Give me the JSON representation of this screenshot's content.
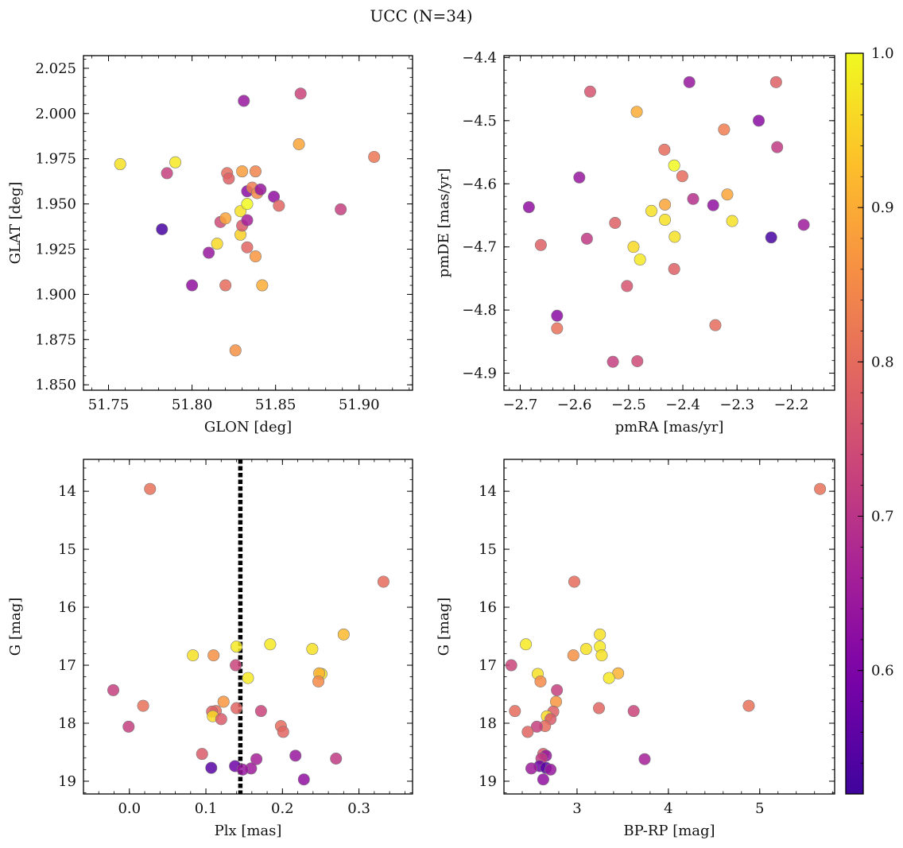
{
  "figure": {
    "title": "UCC (N=34)"
  },
  "colorbar": {
    "colormap": "plasma",
    "vmin": 0.52,
    "vmax": 1.0,
    "ticks": [
      0.6,
      0.7,
      0.8,
      0.9,
      1.0
    ]
  },
  "chart_data": [
    {
      "type": "scatter",
      "xlabel": "GLON [deg]",
      "ylabel": "GLAT [deg]",
      "xlim": [
        51.735,
        51.932
      ],
      "ylim": [
        1.847,
        2.032
      ],
      "xticks": [
        51.75,
        51.8,
        51.85,
        51.9
      ],
      "xtick_decimals": 2,
      "yticks": [
        1.85,
        1.875,
        1.9,
        1.925,
        1.95,
        1.975,
        2.0,
        2.025
      ],
      "ytick_decimals": 3,
      "invert_y": false,
      "points": [
        {
          "x": 51.757,
          "y": 1.972,
          "c": 0.97
        },
        {
          "x": 51.785,
          "y": 1.967,
          "c": 0.72
        },
        {
          "x": 51.79,
          "y": 1.973,
          "c": 0.98
        },
        {
          "x": 51.782,
          "y": 1.936,
          "c": 0.53
        },
        {
          "x": 51.8,
          "y": 1.905,
          "c": 0.63
        },
        {
          "x": 51.81,
          "y": 1.923,
          "c": 0.64
        },
        {
          "x": 51.815,
          "y": 1.928,
          "c": 0.96
        },
        {
          "x": 51.817,
          "y": 1.94,
          "c": 0.74
        },
        {
          "x": 51.82,
          "y": 1.942,
          "c": 0.89
        },
        {
          "x": 51.821,
          "y": 1.967,
          "c": 0.8
        },
        {
          "x": 51.822,
          "y": 1.964,
          "c": 0.78
        },
        {
          "x": 51.82,
          "y": 1.905,
          "c": 0.8
        },
        {
          "x": 51.826,
          "y": 1.869,
          "c": 0.86
        },
        {
          "x": 51.829,
          "y": 1.946,
          "c": 0.97
        },
        {
          "x": 51.829,
          "y": 1.933,
          "c": 0.95
        },
        {
          "x": 51.83,
          "y": 1.968,
          "c": 0.88
        },
        {
          "x": 51.83,
          "y": 1.938,
          "c": 0.77
        },
        {
          "x": 51.833,
          "y": 1.95,
          "c": 1.0
        },
        {
          "x": 51.833,
          "y": 1.941,
          "c": 0.66
        },
        {
          "x": 51.833,
          "y": 1.926,
          "c": 0.79
        },
        {
          "x": 51.831,
          "y": 2.007,
          "c": 0.64
        },
        {
          "x": 51.833,
          "y": 1.957,
          "c": 0.62
        },
        {
          "x": 51.836,
          "y": 1.959,
          "c": 0.83
        },
        {
          "x": 51.838,
          "y": 1.968,
          "c": 0.84
        },
        {
          "x": 51.839,
          "y": 1.956,
          "c": 0.85
        },
        {
          "x": 51.841,
          "y": 1.958,
          "c": 0.64
        },
        {
          "x": 51.838,
          "y": 1.921,
          "c": 0.87
        },
        {
          "x": 51.842,
          "y": 1.905,
          "c": 0.9
        },
        {
          "x": 51.849,
          "y": 1.954,
          "c": 0.63
        },
        {
          "x": 51.852,
          "y": 1.949,
          "c": 0.79
        },
        {
          "x": 51.864,
          "y": 1.983,
          "c": 0.89
        },
        {
          "x": 51.865,
          "y": 2.011,
          "c": 0.73
        },
        {
          "x": 51.889,
          "y": 1.947,
          "c": 0.72
        },
        {
          "x": 51.909,
          "y": 1.976,
          "c": 0.82
        }
      ]
    },
    {
      "type": "scatter",
      "xlabel": "pmRA [mas/yr]",
      "ylabel": "pmDE [mas/yr]",
      "xlim": [
        -2.73,
        -2.12
      ],
      "ylim": [
        -4.927,
        -4.397
      ],
      "xticks": [
        -2.7,
        -2.6,
        -2.5,
        -2.4,
        -2.3,
        -2.2
      ],
      "xtick_decimals": 1,
      "yticks": [
        -4.9,
        -4.8,
        -4.7,
        -4.6,
        -4.5,
        -4.4
      ],
      "ytick_decimals": 1,
      "invert_y": false,
      "points": [
        {
          "x": -2.684,
          "y": -4.637,
          "c": 0.63
        },
        {
          "x": -2.662,
          "y": -4.697,
          "c": 0.78
        },
        {
          "x": -2.632,
          "y": -4.809,
          "c": 0.62
        },
        {
          "x": -2.632,
          "y": -4.829,
          "c": 0.81
        },
        {
          "x": -2.591,
          "y": -4.59,
          "c": 0.64
        },
        {
          "x": -2.577,
          "y": -4.687,
          "c": 0.71
        },
        {
          "x": -2.571,
          "y": -4.454,
          "c": 0.76
        },
        {
          "x": -2.529,
          "y": -4.882,
          "c": 0.72
        },
        {
          "x": -2.525,
          "y": -4.662,
          "c": 0.78
        },
        {
          "x": -2.503,
          "y": -4.762,
          "c": 0.76
        },
        {
          "x": -2.491,
          "y": -4.7,
          "c": 0.96
        },
        {
          "x": -2.485,
          "y": -4.486,
          "c": 0.9
        },
        {
          "x": -2.484,
          "y": -4.881,
          "c": 0.74
        },
        {
          "x": -2.479,
          "y": -4.72,
          "c": 0.98
        },
        {
          "x": -2.458,
          "y": -4.643,
          "c": 0.97
        },
        {
          "x": -2.434,
          "y": -4.546,
          "c": 0.8
        },
        {
          "x": -2.433,
          "y": -4.633,
          "c": 0.89
        },
        {
          "x": -2.433,
          "y": -4.657,
          "c": 0.97
        },
        {
          "x": -2.416,
          "y": -4.571,
          "c": 1.0
        },
        {
          "x": -2.415,
          "y": -4.684,
          "c": 0.97
        },
        {
          "x": -2.416,
          "y": -4.735,
          "c": 0.78
        },
        {
          "x": -2.401,
          "y": -4.588,
          "c": 0.8
        },
        {
          "x": -2.388,
          "y": -4.439,
          "c": 0.64
        },
        {
          "x": -2.381,
          "y": -4.624,
          "c": 0.69
        },
        {
          "x": -2.344,
          "y": -4.634,
          "c": 0.63
        },
        {
          "x": -2.34,
          "y": -4.824,
          "c": 0.8
        },
        {
          "x": -2.324,
          "y": -4.514,
          "c": 0.83
        },
        {
          "x": -2.318,
          "y": -4.617,
          "c": 0.89
        },
        {
          "x": -2.309,
          "y": -4.659,
          "c": 0.97
        },
        {
          "x": -2.26,
          "y": -4.5,
          "c": 0.62
        },
        {
          "x": -2.237,
          "y": -4.685,
          "c": 0.53
        },
        {
          "x": -2.228,
          "y": -4.439,
          "c": 0.78
        },
        {
          "x": -2.226,
          "y": -4.542,
          "c": 0.71
        },
        {
          "x": -2.177,
          "y": -4.665,
          "c": 0.65
        }
      ]
    },
    {
      "type": "scatter",
      "xlabel": "Plx [mas]",
      "ylabel": "G [mag]",
      "xlim": [
        -0.06,
        0.37
      ],
      "ylim": [
        13.45,
        19.22
      ],
      "xticks": [
        0.0,
        0.1,
        0.2,
        0.3
      ],
      "xtick_decimals": 1,
      "yticks": [
        14,
        15,
        16,
        17,
        18,
        19
      ],
      "ytick_decimals": 0,
      "invert_y": true,
      "vline": {
        "x": 0.145,
        "style": "dotted"
      },
      "points": [
        {
          "x": 0.027,
          "y": 13.96,
          "c": 0.81
        },
        {
          "x": 0.332,
          "y": 15.56,
          "c": 0.8
        },
        {
          "x": 0.28,
          "y": 16.47,
          "c": 0.92
        },
        {
          "x": 0.184,
          "y": 16.64,
          "c": 0.98
        },
        {
          "x": 0.14,
          "y": 16.68,
          "c": 0.98
        },
        {
          "x": 0.239,
          "y": 16.72,
          "c": 0.97
        },
        {
          "x": 0.083,
          "y": 16.83,
          "c": 0.97
        },
        {
          "x": 0.11,
          "y": 16.83,
          "c": 0.86
        },
        {
          "x": 0.139,
          "y": 17.0,
          "c": 0.73
        },
        {
          "x": 0.251,
          "y": 17.15,
          "c": 0.97
        },
        {
          "x": 0.248,
          "y": 17.14,
          "c": 0.91
        },
        {
          "x": 0.155,
          "y": 17.22,
          "c": 0.98
        },
        {
          "x": 0.247,
          "y": 17.28,
          "c": 0.85
        },
        {
          "x": -0.021,
          "y": 17.43,
          "c": 0.72
        },
        {
          "x": 0.123,
          "y": 17.63,
          "c": 0.87
        },
        {
          "x": 0.018,
          "y": 17.7,
          "c": 0.81
        },
        {
          "x": 0.14,
          "y": 17.74,
          "c": 0.79
        },
        {
          "x": 0.113,
          "y": 17.79,
          "c": 0.8
        },
        {
          "x": 0.108,
          "y": 17.8,
          "c": 0.78
        },
        {
          "x": 0.172,
          "y": 17.79,
          "c": 0.73
        },
        {
          "x": 0.109,
          "y": 17.88,
          "c": 0.96
        },
        {
          "x": 0.12,
          "y": 17.93,
          "c": 0.77
        },
        {
          "x": -0.001,
          "y": 18.06,
          "c": 0.72
        },
        {
          "x": 0.198,
          "y": 18.05,
          "c": 0.8
        },
        {
          "x": 0.201,
          "y": 18.15,
          "c": 0.79
        },
        {
          "x": 0.095,
          "y": 18.53,
          "c": 0.77
        },
        {
          "x": 0.217,
          "y": 18.56,
          "c": 0.64
        },
        {
          "x": 0.166,
          "y": 18.62,
          "c": 0.66
        },
        {
          "x": 0.27,
          "y": 18.61,
          "c": 0.71
        },
        {
          "x": 0.107,
          "y": 18.77,
          "c": 0.55
        },
        {
          "x": 0.138,
          "y": 18.74,
          "c": 0.58
        },
        {
          "x": 0.159,
          "y": 18.78,
          "c": 0.65
        },
        {
          "x": 0.148,
          "y": 18.8,
          "c": 0.64
        },
        {
          "x": 0.228,
          "y": 18.97,
          "c": 0.63
        }
      ]
    },
    {
      "type": "scatter",
      "xlabel": "BP-RP [mag]",
      "ylabel": "G [mag]",
      "xlim": [
        2.2,
        5.82
      ],
      "ylim": [
        13.45,
        19.22
      ],
      "xticks": [
        3,
        4,
        5
      ],
      "xtick_decimals": 0,
      "yticks": [
        14,
        15,
        16,
        17,
        18,
        19
      ],
      "ytick_decimals": 0,
      "invert_y": true,
      "points": [
        {
          "x": 5.66,
          "y": 13.96,
          "c": 0.81
        },
        {
          "x": 2.97,
          "y": 15.56,
          "c": 0.8
        },
        {
          "x": 3.25,
          "y": 16.47,
          "c": 0.97
        },
        {
          "x": 2.44,
          "y": 16.64,
          "c": 0.98
        },
        {
          "x": 3.25,
          "y": 16.68,
          "c": 0.98
        },
        {
          "x": 3.1,
          "y": 16.72,
          "c": 0.97
        },
        {
          "x": 2.96,
          "y": 16.83,
          "c": 0.86
        },
        {
          "x": 3.27,
          "y": 16.83,
          "c": 0.97
        },
        {
          "x": 2.28,
          "y": 17.0,
          "c": 0.73
        },
        {
          "x": 2.57,
          "y": 17.15,
          "c": 0.97
        },
        {
          "x": 3.45,
          "y": 17.14,
          "c": 0.91
        },
        {
          "x": 3.35,
          "y": 17.22,
          "c": 0.98
        },
        {
          "x": 2.6,
          "y": 17.28,
          "c": 0.85
        },
        {
          "x": 2.78,
          "y": 17.43,
          "c": 0.72
        },
        {
          "x": 2.77,
          "y": 17.63,
          "c": 0.87
        },
        {
          "x": 4.88,
          "y": 17.7,
          "c": 0.81
        },
        {
          "x": 3.24,
          "y": 17.74,
          "c": 0.79
        },
        {
          "x": 2.32,
          "y": 17.79,
          "c": 0.8
        },
        {
          "x": 3.62,
          "y": 17.79,
          "c": 0.73
        },
        {
          "x": 2.74,
          "y": 17.8,
          "c": 0.78
        },
        {
          "x": 2.67,
          "y": 17.88,
          "c": 0.96
        },
        {
          "x": 2.71,
          "y": 17.93,
          "c": 0.77
        },
        {
          "x": 2.65,
          "y": 18.05,
          "c": 0.8
        },
        {
          "x": 2.56,
          "y": 18.06,
          "c": 0.72
        },
        {
          "x": 2.46,
          "y": 18.15,
          "c": 0.79
        },
        {
          "x": 2.63,
          "y": 18.53,
          "c": 0.77
        },
        {
          "x": 2.66,
          "y": 18.56,
          "c": 0.64
        },
        {
          "x": 3.74,
          "y": 18.62,
          "c": 0.66
        },
        {
          "x": 2.61,
          "y": 18.61,
          "c": 0.71
        },
        {
          "x": 2.59,
          "y": 18.74,
          "c": 0.58
        },
        {
          "x": 2.5,
          "y": 18.78,
          "c": 0.65
        },
        {
          "x": 2.66,
          "y": 18.77,
          "c": 0.55
        },
        {
          "x": 2.71,
          "y": 18.8,
          "c": 0.64
        },
        {
          "x": 2.63,
          "y": 18.97,
          "c": 0.63
        }
      ]
    }
  ]
}
